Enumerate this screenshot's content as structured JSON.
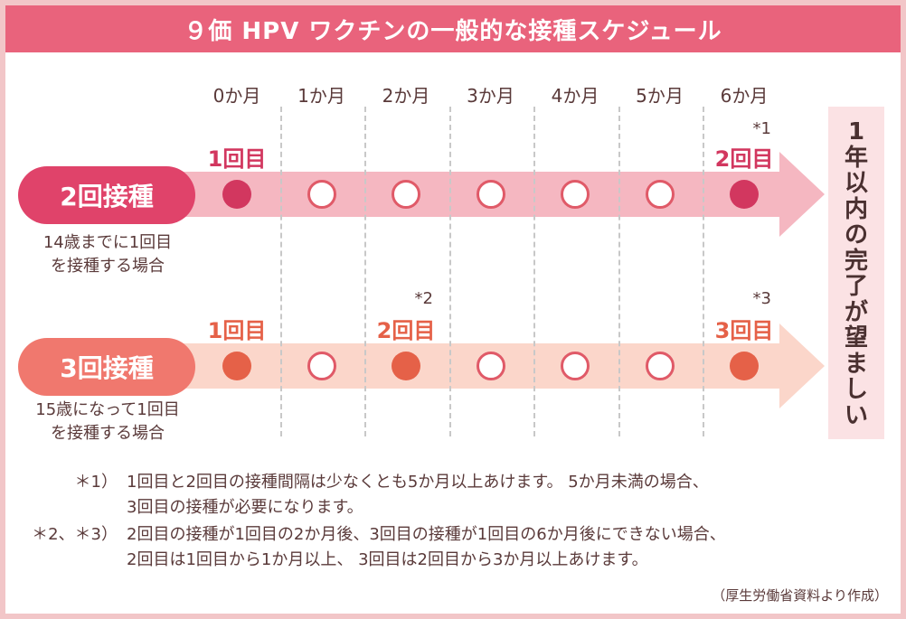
{
  "title": "９価 HPV ワクチンの一般的な接種スケジュール",
  "months": [
    "0か月",
    "1か月",
    "2か月",
    "3か月",
    "4か月",
    "5か月",
    "6か月"
  ],
  "goal_text": [
    "1",
    "年",
    "以",
    "内",
    "の",
    "完",
    "了",
    "が",
    "望",
    "ま",
    "し",
    "い"
  ],
  "schedule_two": {
    "label": "2回接種",
    "subtitle_line1": "14歳までに1回目",
    "subtitle_line2": "を接種する場合",
    "doses": [
      {
        "month": 0,
        "label": "1回目",
        "note": ""
      },
      {
        "month": 6,
        "label": "2回目",
        "note": "*1"
      }
    ],
    "color_main": "#e0436a",
    "color_dot": "#d2375f",
    "color_arrow": "#f5b7c1"
  },
  "schedule_three": {
    "label": "3回接種",
    "subtitle_line1": "15歳になって1回目",
    "subtitle_line2": "を接種する場合",
    "doses": [
      {
        "month": 0,
        "label": "1回目",
        "note": ""
      },
      {
        "month": 2,
        "label": "2回目",
        "note": "*2"
      },
      {
        "month": 6,
        "label": "3回目",
        "note": "*3"
      }
    ],
    "color_main": "#f0786e",
    "color_dot": "#e56148",
    "color_arrow": "#fbd6ca"
  },
  "footnotes": [
    {
      "mark": "＊1）",
      "line1": "1回目と2回目の接種間隔は少なくとも5か月以上あけます。 5か月未満の場合、",
      "line2": "3回目の接種が必要になります。"
    },
    {
      "mark": "＊2、＊3）",
      "line1": "2回目の接種が1回目の2か月後、3回目の接種が1回目の6か月後にできない場合、",
      "line2": "2回目は1回目から1か月以上、 3回目は2回目から3か月以上あけます。"
    }
  ],
  "source": "（厚生労働省資料より作成）"
}
